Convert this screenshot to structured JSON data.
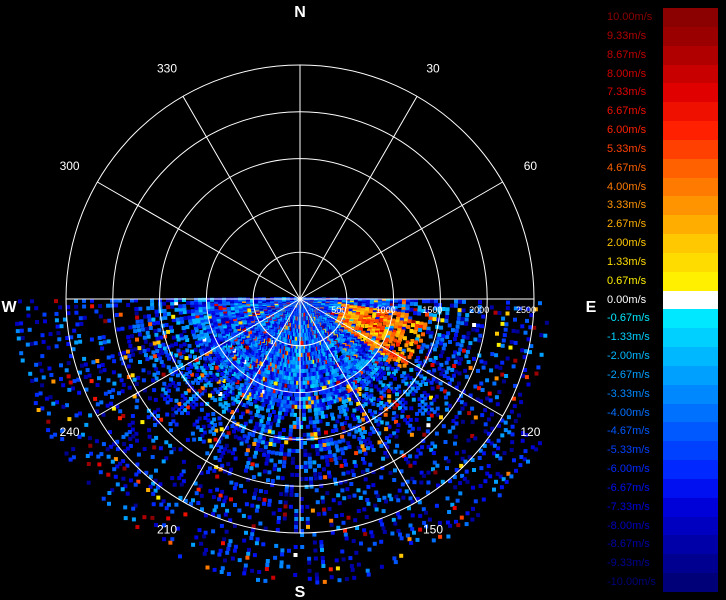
{
  "compass": {
    "north": "N",
    "south": "S",
    "east": "E",
    "west": "W"
  },
  "azimuth_labels": [
    {
      "deg": 30,
      "text": "30"
    },
    {
      "deg": 60,
      "text": "60"
    },
    {
      "deg": 120,
      "text": "120"
    },
    {
      "deg": 150,
      "text": "150"
    },
    {
      "deg": 210,
      "text": "210"
    },
    {
      "deg": 240,
      "text": "240"
    },
    {
      "deg": 300,
      "text": "300"
    },
    {
      "deg": 330,
      "text": "330"
    }
  ],
  "range_labels": [
    "500",
    "1000",
    "1500",
    "2000",
    "2500"
  ],
  "range_max": 2500,
  "range_step": 500,
  "legend": [
    {
      "label": "10.00m/s",
      "color": "#8b0000",
      "text_color": "#8b0000"
    },
    {
      "label": "9.33m/s",
      "color": "#9a0000",
      "text_color": "#b00000"
    },
    {
      "label": "8.67m/s",
      "color": "#b00000",
      "text_color": "#c00000"
    },
    {
      "label": "8.00m/s",
      "color": "#c80000",
      "text_color": "#d00000"
    },
    {
      "label": "7.33m/s",
      "color": "#e00000",
      "text_color": "#e00000"
    },
    {
      "label": "6.67m/s",
      "color": "#f01000",
      "text_color": "#f01000"
    },
    {
      "label": "6.00m/s",
      "color": "#ff2000",
      "text_color": "#ff2000"
    },
    {
      "label": "5.33m/s",
      "color": "#ff4000",
      "text_color": "#ff4000"
    },
    {
      "label": "4.67m/s",
      "color": "#ff6000",
      "text_color": "#ff6000"
    },
    {
      "label": "4.00m/s",
      "color": "#ff7a00",
      "text_color": "#ff7a00"
    },
    {
      "label": "3.33m/s",
      "color": "#ff9400",
      "text_color": "#ff9400"
    },
    {
      "label": "2.67m/s",
      "color": "#ffae00",
      "text_color": "#ffae00"
    },
    {
      "label": "2.00m/s",
      "color": "#ffc800",
      "text_color": "#ffc800"
    },
    {
      "label": "1.33m/s",
      "color": "#ffdc00",
      "text_color": "#ffdc00"
    },
    {
      "label": "0.67m/s",
      "color": "#fff000",
      "text_color": "#fff000"
    },
    {
      "label": "0.00m/s",
      "color": "#ffffff",
      "text_color": "#ffffff"
    },
    {
      "label": "-0.67m/s",
      "color": "#00e8ff",
      "text_color": "#00e8ff"
    },
    {
      "label": "-1.33m/s",
      "color": "#00d0ff",
      "text_color": "#00d0ff"
    },
    {
      "label": "-2.00m/s",
      "color": "#00b8ff",
      "text_color": "#00b8ff"
    },
    {
      "label": "-2.67m/s",
      "color": "#00a0ff",
      "text_color": "#00a0ff"
    },
    {
      "label": "-3.33m/s",
      "color": "#0088ff",
      "text_color": "#0088ff"
    },
    {
      "label": "-4.00m/s",
      "color": "#0070ff",
      "text_color": "#0070ff"
    },
    {
      "label": "-4.67m/s",
      "color": "#0058ff",
      "text_color": "#0058ff"
    },
    {
      "label": "-5.33m/s",
      "color": "#0040ff",
      "text_color": "#0040ff"
    },
    {
      "label": "-6.00m/s",
      "color": "#0028ff",
      "text_color": "#0028ff"
    },
    {
      "label": "-6.67m/s",
      "color": "#0010f0",
      "text_color": "#0010f0"
    },
    {
      "label": "-7.33m/s",
      "color": "#0000d8",
      "text_color": "#0000d8"
    },
    {
      "label": "-8.00m/s",
      "color": "#0000c0",
      "text_color": "#0000c0"
    },
    {
      "label": "-8.67m/s",
      "color": "#0000a8",
      "text_color": "#0000a8"
    },
    {
      "label": "-9.33m/s",
      "color": "#000090",
      "text_color": "#000090"
    },
    {
      "label": "-10.00m/s",
      "color": "#000078",
      "text_color": "#000078"
    }
  ],
  "colors": {
    "grid": "#ffffff",
    "background": "#000000"
  }
}
